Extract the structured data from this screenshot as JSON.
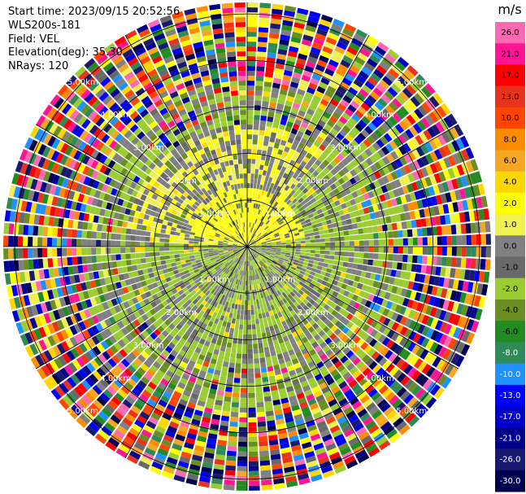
{
  "header": {
    "start_time": "Start time: 2023/09/15 20:52:56",
    "instrument": "WLS200s-181",
    "field": "Field: VEL",
    "elevation": "Elevation(deg): 35.30",
    "nrays": "NRays: 120"
  },
  "chart_data": {
    "type": "heatmap",
    "subtype": "ppi-polar",
    "field": "VEL",
    "n_rays": 120,
    "units": "m/s",
    "range_rings_km": [
      1.0,
      2.0,
      3.0,
      4.0,
      5.0
    ],
    "range_labels": [
      "1.00km",
      "2.00km",
      "3.00km",
      "4.00km",
      "5.00km"
    ],
    "colorbar": {
      "unit_label": "m/s",
      "ticks": [
        "26.0",
        "21.0",
        "17.0",
        "13.0",
        "10.0",
        "8.0",
        "6.0",
        "4.0",
        "2.0",
        "1.0",
        "0.0",
        "-1.0",
        "-2.0",
        "-4.0",
        "-6.0",
        "-8.0",
        "-10.0",
        "-13.0",
        "-17.0",
        "-21.0",
        "-26.0",
        "-30.0"
      ],
      "colors": [
        "#ff69b4",
        "#ff1493",
        "#ff0000",
        "#e8321e",
        "#ff4500",
        "#ff8c00",
        "#f5a623",
        "#ffd700",
        "#ffff00",
        "#f0f050",
        "#808080",
        "#696969",
        "#9acd32",
        "#6b8e23",
        "#228b22",
        "#2e8b57",
        "#1e90ff",
        "#0000ff",
        "#0000cd",
        "#00008b",
        "#191970",
        "#000050"
      ]
    },
    "grid": true,
    "legend_position": "right"
  }
}
